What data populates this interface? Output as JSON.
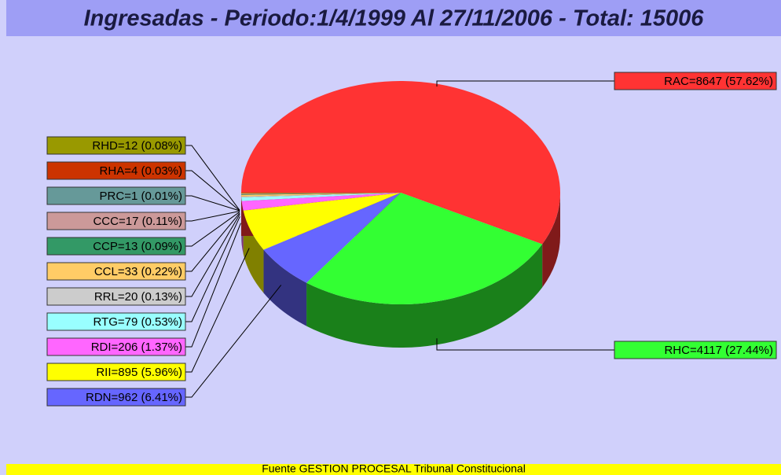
{
  "chart_data": {
    "type": "pie3d",
    "title": "Ingresadas - Periodo:1/4/1999 Al 27/11/2006 - Total: 15006",
    "footer": "Fuente GESTION PROCESAL Tribunal Constitucional",
    "values": [
      8647,
      4117,
      962,
      895,
      206,
      79,
      20,
      33,
      13,
      17,
      1,
      4,
      12
    ],
    "value_labels": [
      "RAC=8647 (57.62%)",
      "RHC=4117 (27.44%)",
      "RDN=962 (6.41%)",
      "RII=895 (5.96%)",
      "RDI=206 (1.37%)",
      "RTG=79 (0.53%)",
      "RRL=20 (0.13%)",
      "CCL=33 (0.22%)",
      "CCP=13 (0.09%)",
      "CCC=17 (0.11%)",
      "PRC=1 (0.01%)",
      "RHA=4 (0.03%)",
      "RHD=12 (0.08%)"
    ],
    "colors": [
      "#ff3333",
      "#33ff33",
      "#6666ff",
      "#ffff00",
      "#ff66ff",
      "#99ffff",
      "#cccccc",
      "#ffcc66",
      "#339966",
      "#cc9999",
      "#669999",
      "#cc3300",
      "#999900"
    ]
  }
}
